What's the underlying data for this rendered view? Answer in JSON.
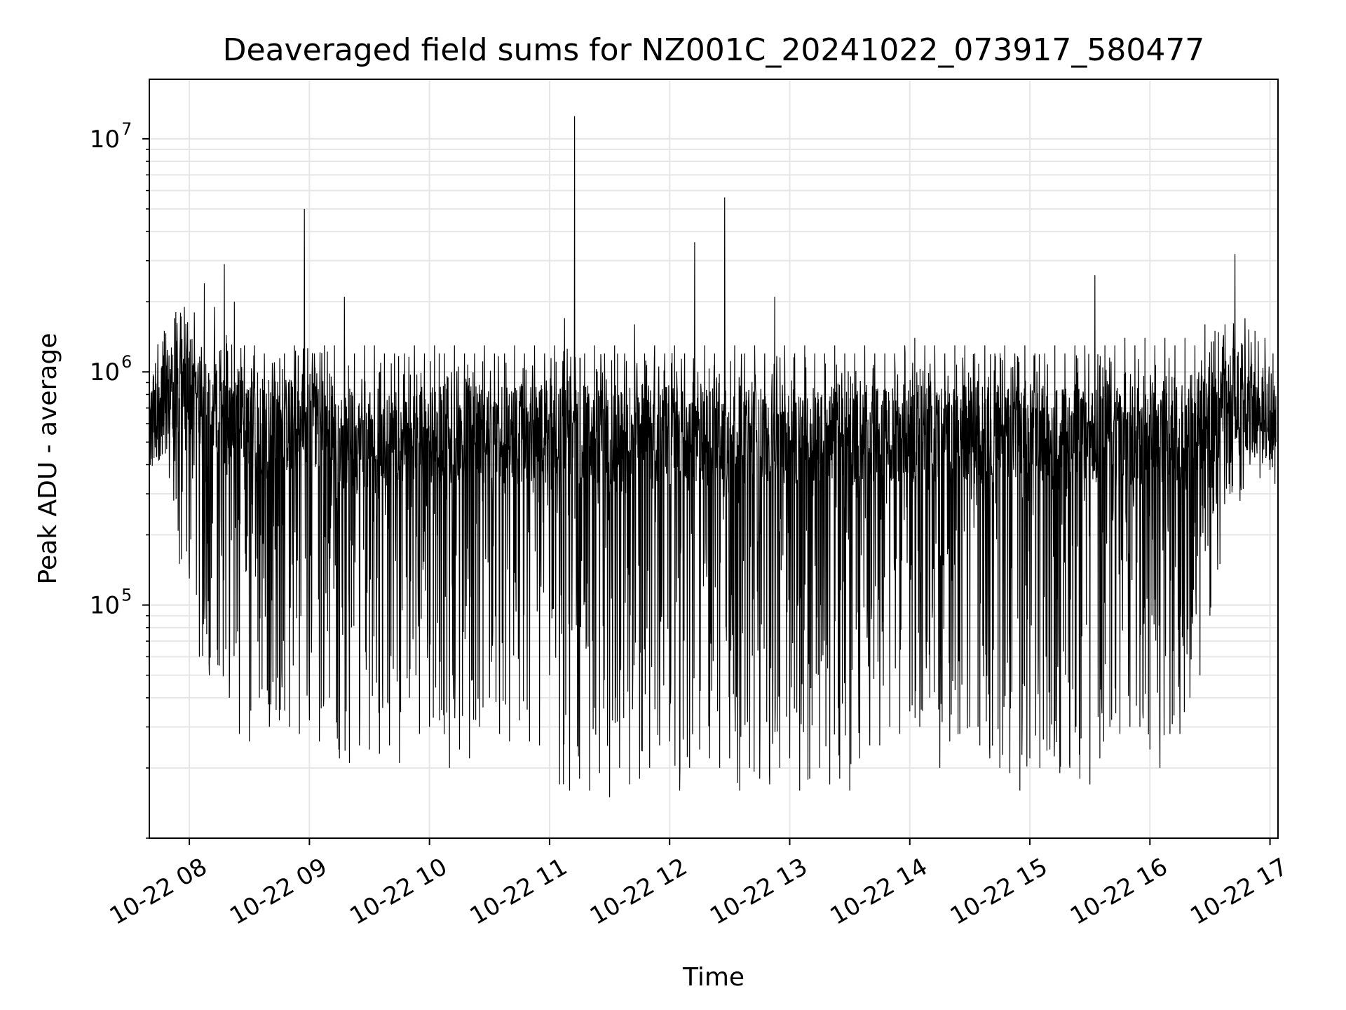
{
  "chart_data": {
    "type": "line",
    "title": "Deaveraged field sums for NZ001C_20241022_073917_580477",
    "xlabel": "Time",
    "ylabel": "Peak ADU - average",
    "y_scale": "log",
    "grid": true,
    "xlim": [
      "2024-10-22 07:40",
      "2024-10-22 17:04"
    ],
    "ylim": [
      10000,
      18000000
    ],
    "x_ticks": [
      "10-22 08",
      "10-22 09",
      "10-22 10",
      "10-22 11",
      "10-22 12",
      "10-22 13",
      "10-22 14",
      "10-22 15",
      "10-22 16",
      "10-22 17"
    ],
    "y_ticks": [
      {
        "base": "10",
        "exp": "5",
        "value": 100000
      },
      {
        "base": "10",
        "exp": "6",
        "value": 1000000
      },
      {
        "base": "10",
        "exp": "7",
        "value": 10000000
      }
    ],
    "series": [
      {
        "color": "#000000",
        "x": [
          "2024-10-22 07:40",
          "2024-10-22 07:45",
          "2024-10-22 07:50",
          "2024-10-22 07:55",
          "2024-10-22 08:00",
          "2024-10-22 08:05",
          "2024-10-22 08:10",
          "2024-10-22 08:15",
          "2024-10-22 08:20",
          "2024-10-22 08:25",
          "2024-10-22 08:30",
          "2024-10-22 08:35",
          "2024-10-22 08:40",
          "2024-10-22 08:45",
          "2024-10-22 08:50",
          "2024-10-22 08:55",
          "2024-10-22 09:00",
          "2024-10-22 09:05",
          "2024-10-22 09:10",
          "2024-10-22 09:15",
          "2024-10-22 09:20",
          "2024-10-22 09:25",
          "2024-10-22 09:30",
          "2024-10-22 09:35",
          "2024-10-22 09:40",
          "2024-10-22 09:45",
          "2024-10-22 09:50",
          "2024-10-22 09:55",
          "2024-10-22 10:00",
          "2024-10-22 10:05",
          "2024-10-22 10:10",
          "2024-10-22 10:15",
          "2024-10-22 10:20",
          "2024-10-22 10:25",
          "2024-10-22 10:30",
          "2024-10-22 10:35",
          "2024-10-22 10:40",
          "2024-10-22 10:45",
          "2024-10-22 10:50",
          "2024-10-22 10:55",
          "2024-10-22 11:00",
          "2024-10-22 11:05",
          "2024-10-22 11:10",
          "2024-10-22 11:15",
          "2024-10-22 11:20",
          "2024-10-22 11:25",
          "2024-10-22 11:30",
          "2024-10-22 11:35",
          "2024-10-22 11:40",
          "2024-10-22 11:45",
          "2024-10-22 11:50",
          "2024-10-22 11:55",
          "2024-10-22 12:00",
          "2024-10-22 12:05",
          "2024-10-22 12:10",
          "2024-10-22 12:15",
          "2024-10-22 12:20",
          "2024-10-22 12:25",
          "2024-10-22 12:30",
          "2024-10-22 12:35",
          "2024-10-22 12:40",
          "2024-10-22 12:45",
          "2024-10-22 12:50",
          "2024-10-22 12:55",
          "2024-10-22 13:00",
          "2024-10-22 13:05",
          "2024-10-22 13:10",
          "2024-10-22 13:15",
          "2024-10-22 13:20",
          "2024-10-22 13:25",
          "2024-10-22 13:30",
          "2024-10-22 13:35",
          "2024-10-22 13:40",
          "2024-10-22 13:45",
          "2024-10-22 13:50",
          "2024-10-22 13:55",
          "2024-10-22 14:00",
          "2024-10-22 14:05",
          "2024-10-22 14:10",
          "2024-10-22 14:15",
          "2024-10-22 14:20",
          "2024-10-22 14:25",
          "2024-10-22 14:30",
          "2024-10-22 14:35",
          "2024-10-22 14:40",
          "2024-10-22 14:45",
          "2024-10-22 14:50",
          "2024-10-22 14:55",
          "2024-10-22 15:00",
          "2024-10-22 15:05",
          "2024-10-22 15:10",
          "2024-10-22 15:15",
          "2024-10-22 15:20",
          "2024-10-22 15:25",
          "2024-10-22 15:30",
          "2024-10-22 15:35",
          "2024-10-22 15:40",
          "2024-10-22 15:45",
          "2024-10-22 15:50",
          "2024-10-22 15:55",
          "2024-10-22 16:00",
          "2024-10-22 16:05",
          "2024-10-22 16:10",
          "2024-10-22 16:15",
          "2024-10-22 16:20",
          "2024-10-22 16:25",
          "2024-10-22 16:30",
          "2024-10-22 16:35",
          "2024-10-22 16:40",
          "2024-10-22 16:45",
          "2024-10-22 16:50",
          "2024-10-22 16:55",
          "2024-10-22 17:00",
          "2024-10-22 17:03"
        ],
        "y_low": [
          380000,
          420000,
          350000,
          150000,
          130000,
          60000,
          50000,
          55000,
          40000,
          28000,
          26000,
          40000,
          30000,
          32000,
          30000,
          28000,
          32000,
          26000,
          40000,
          22000,
          21000,
          25000,
          24000,
          23000,
          25000,
          21000,
          40000,
          28000,
          30000,
          32000,
          20000,
          24000,
          22000,
          30000,
          40000,
          28000,
          26000,
          32000,
          26000,
          25000,
          50000,
          17000,
          16000,
          18000,
          16000,
          19000,
          15000,
          20000,
          17000,
          18000,
          20000,
          25000,
          26000,
          16000,
          20000,
          24000,
          22000,
          20000,
          22000,
          16000,
          20000,
          18000,
          17000,
          20000,
          22000,
          16000,
          18000,
          20000,
          17000,
          18000,
          16000,
          22000,
          25000,
          25000,
          30000,
          28000,
          35000,
          30000,
          40000,
          20000,
          26000,
          28000,
          30000,
          25000,
          22000,
          20000,
          19000,
          16000,
          22000,
          20000,
          24000,
          19000,
          20000,
          18000,
          17000,
          22000,
          30000,
          28000,
          30000,
          30000,
          24000,
          20000,
          28000,
          28000,
          40000,
          50000,
          90000,
          150000,
          300000,
          280000,
          400000,
          350000,
          380000,
          400000
        ],
        "y_high": [
          800000,
          1500000,
          1700000,
          1900000,
          1800000,
          2400000,
          1900000,
          2900000,
          2000000,
          1300000,
          1300000,
          1200000,
          1100000,
          1200000,
          1300000,
          5000000,
          1200000,
          1300000,
          1300000,
          2100000,
          1200000,
          1300000,
          1300000,
          1200000,
          1200000,
          1200000,
          1300000,
          1200000,
          1300000,
          1200000,
          1300000,
          1200000,
          1200000,
          1300000,
          1200000,
          1200000,
          1300000,
          1200000,
          1300000,
          1200000,
          1300000,
          1700000,
          12500000,
          1200000,
          1300000,
          1200000,
          1300000,
          1200000,
          1600000,
          1200000,
          1300000,
          1200000,
          1300000,
          1200000,
          3600000,
          1300000,
          1200000,
          5600000,
          1300000,
          1200000,
          1300000,
          1200000,
          2100000,
          1300000,
          1200000,
          1300000,
          1200000,
          1200000,
          1300000,
          1200000,
          1200000,
          1300000,
          1200000,
          1200000,
          1200000,
          1300000,
          1400000,
          1300000,
          1300000,
          1200000,
          1300000,
          1300000,
          1200000,
          1300000,
          1200000,
          1300000,
          1200000,
          1300000,
          1200000,
          1200000,
          1300000,
          1200000,
          1300000,
          1300000,
          2600000,
          1300000,
          1300000,
          1400000,
          1300000,
          1400000,
          1300000,
          1400000,
          1300000,
          1400000,
          1300000,
          1600000,
          1500000,
          1600000,
          3200000,
          1700000,
          1500000,
          1400000,
          1200000,
          800000
        ],
        "y_typical": [
          550000,
          700000,
          800000,
          900000,
          850000,
          800000,
          700000,
          700000,
          650000,
          650000,
          600000,
          600000,
          550000,
          600000,
          600000,
          600000,
          650000,
          600000,
          600000,
          550000,
          500000,
          500000,
          500000,
          500000,
          550000,
          550000,
          550000,
          550000,
          550000,
          550000,
          550000,
          550000,
          550000,
          550000,
          550000,
          550000,
          550000,
          550000,
          550000,
          550000,
          550000,
          550000,
          600000,
          550000,
          550000,
          550000,
          550000,
          550000,
          550000,
          550000,
          550000,
          550000,
          550000,
          550000,
          550000,
          550000,
          550000,
          550000,
          550000,
          550000,
          550000,
          550000,
          550000,
          550000,
          550000,
          550000,
          550000,
          550000,
          550000,
          550000,
          550000,
          550000,
          550000,
          550000,
          550000,
          550000,
          550000,
          550000,
          550000,
          550000,
          550000,
          550000,
          550000,
          550000,
          550000,
          550000,
          550000,
          550000,
          550000,
          550000,
          550000,
          550000,
          550000,
          550000,
          550000,
          550000,
          550000,
          550000,
          550000,
          550000,
          550000,
          550000,
          550000,
          550000,
          550000,
          600000,
          650000,
          700000,
          800000,
          800000,
          700000,
          650000,
          600000,
          500000
        ]
      }
    ]
  }
}
